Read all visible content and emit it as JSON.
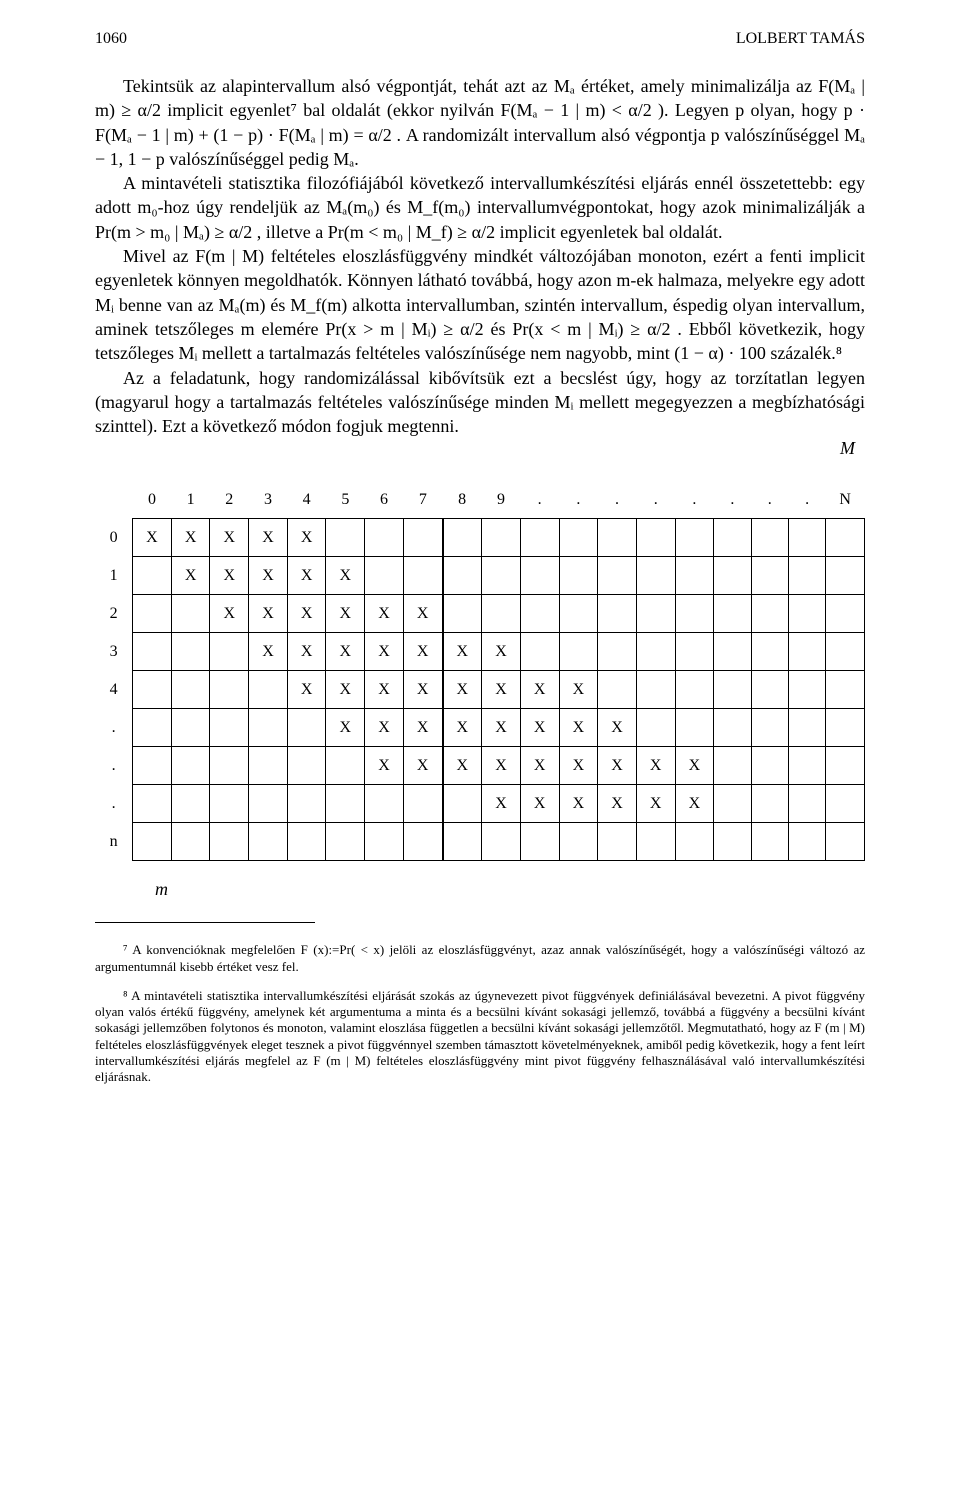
{
  "header": {
    "page_number": "1060",
    "running_head": "LOLBERT TAMÁS"
  },
  "paragraphs": {
    "p1": "Tekintsük az alapintervallum alsó végpontját, tehát azt az Mₐ értéket, amely minimalizálja az  F(Mₐ | m) ≥ α/2  implicit egyenlet⁷ bal oldalát (ekkor nyilván F(Mₐ − 1 | m) < α/2 ). Legyen p olyan, hogy  p · F(Mₐ − 1 | m) + (1 − p) · F(Mₐ | m) = α/2 . A randomizált intervallum alsó végpontja p valószínűséggel Mₐ − 1, 1 − p valószínűséggel pedig Mₐ.",
    "p2": "A mintavételi statisztika filozófiájából következő intervallumkészítési eljárás ennél összetettebb: egy adott m₀-hoz úgy rendeljük az Mₐ(m₀) és M_f(m₀) intervallumvégpontokat, hogy azok minimalizálják a Pr(m > m₀ | Mₐ) ≥ α/2 , illetve a  Pr(m < m₀ | M_f) ≥ α/2 implicit egyenletek bal oldalát.",
    "p3": "Mivel az F(m | M) feltételes eloszlásfüggvény mindkét változójában monoton, ezért a fenti implicit egyenletek könnyen megoldhatók. Könnyen látható továbbá, hogy azon m-ek halmaza, melyekre egy adott Mᵢ benne van az Mₐ(m) és M_f(m) alkotta intervallumban, szintén intervallum, éspedig olyan intervallum, aminek tetszőleges m elemére Pr(x > m | Mᵢ) ≥ α/2  és  Pr(x < m | Mᵢ) ≥ α/2 . Ebből következik, hogy tetszőleges Mᵢ mellett a tartalmazás feltételes valószínűsége nem nagyobb, mint (1 − α) · 100 százalék.⁸",
    "p4": "Az a feladatunk, hogy randomizálással kibővítsük ezt a becslést úgy, hogy az torzítatlan legyen (magyarul hogy a tartalmazás feltételes valószínűsége minden Mᵢ mellett megegyezzen a megbízhatósági szinttel). Ezt a következő módon fogjuk megtenni."
  },
  "table": {
    "axis_top": "M",
    "axis_left": "m",
    "col_headers": [
      "0",
      "1",
      "2",
      "3",
      "4",
      "5",
      "6",
      "7",
      "8",
      "9",
      ".",
      ".",
      ".",
      ".",
      ".",
      ".",
      ".",
      ".",
      "N"
    ],
    "row_headers": [
      "0",
      "1",
      "2",
      "3",
      "4",
      ".",
      ".",
      ".",
      "n"
    ],
    "thick_after_col": 7,
    "marks": [
      [
        1,
        1,
        1,
        1,
        1,
        0,
        0,
        0,
        0,
        0,
        0,
        0,
        0,
        0,
        0,
        0,
        0,
        0,
        0
      ],
      [
        0,
        1,
        1,
        1,
        1,
        1,
        0,
        0,
        0,
        0,
        0,
        0,
        0,
        0,
        0,
        0,
        0,
        0,
        0
      ],
      [
        0,
        0,
        1,
        1,
        1,
        1,
        1,
        1,
        0,
        0,
        0,
        0,
        0,
        0,
        0,
        0,
        0,
        0,
        0
      ],
      [
        0,
        0,
        0,
        1,
        1,
        1,
        1,
        1,
        1,
        1,
        0,
        0,
        0,
        0,
        0,
        0,
        0,
        0,
        0
      ],
      [
        0,
        0,
        0,
        0,
        1,
        1,
        1,
        1,
        1,
        1,
        1,
        1,
        0,
        0,
        0,
        0,
        0,
        0,
        0
      ],
      [
        0,
        0,
        0,
        0,
        0,
        1,
        1,
        1,
        1,
        1,
        1,
        1,
        1,
        0,
        0,
        0,
        0,
        0,
        0
      ],
      [
        0,
        0,
        0,
        0,
        0,
        0,
        1,
        1,
        1,
        1,
        1,
        1,
        1,
        1,
        1,
        0,
        0,
        0,
        0
      ],
      [
        0,
        0,
        0,
        0,
        0,
        0,
        0,
        0,
        0,
        1,
        1,
        1,
        1,
        1,
        1,
        0,
        0,
        0,
        0
      ],
      [
        0,
        0,
        0,
        0,
        0,
        0,
        0,
        0,
        0,
        0,
        0,
        0,
        0,
        0,
        0,
        0,
        0,
        0,
        0
      ]
    ],
    "mark_glyph": "X"
  },
  "footnotes": {
    "f7": "⁷ A konvencióknak megfelelően F (x):=Pr(  < x) jelöli az eloszlásfüggvényt, azaz annak valószínűségét, hogy a valószínűségi változó az argumentumnál kisebb értéket vesz fel.",
    "f8": "⁸ A mintavételi statisztika intervallumkészítési eljárását szokás az úgynevezett pivot függvények definiálásával bevezetni. A pivot függvény olyan valós értékű függvény, amelynek két argumentuma a minta és a becsülni kívánt sokasági jellemző, továbbá a függvény a becsülni kívánt sokasági jellemzőben folytonos és monoton, valamint eloszlása független a becsülni kívánt sokasági jellemzőtől. Megmutatható, hogy az F (m | M) feltételes eloszlásfüggvények eleget tesznek a pivot függvénnyel szemben támasztott követelményeknek, amiből pedig következik, hogy a fent leírt intervallumkészítési eljárás megfelel az F (m | M) feltételes eloszlásfüggvény mint pivot függvény felhasználásával való intervallumkészítési eljárásnak."
  }
}
